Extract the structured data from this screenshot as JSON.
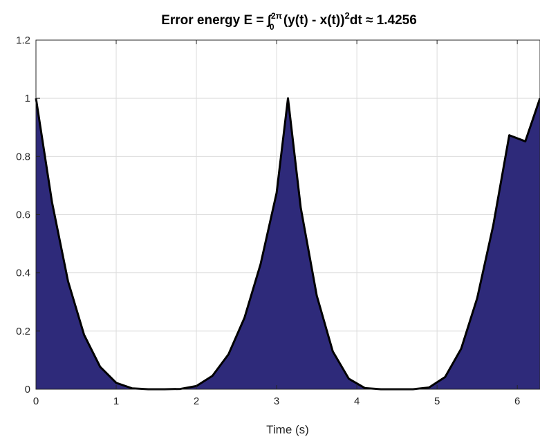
{
  "chart_data": {
    "type": "area",
    "title": {
      "lead": "Error energy E = ∫",
      "upper_limit": "2π",
      "lower_limit": "0",
      "mid": " (y(t) - x(t))",
      "exponent": "2",
      "tail": "dt ≈ 1.4256"
    },
    "xlabel": "Time (s)",
    "ylabel": "",
    "xlim": [
      0,
      6.283
    ],
    "ylim": [
      0,
      1.2
    ],
    "xticks": [
      0,
      1,
      2,
      3,
      4,
      5,
      6
    ],
    "xtick_labels": [
      "0",
      "1",
      "2",
      "3",
      "4",
      "5",
      "6"
    ],
    "yticks": [
      0,
      0.2,
      0.4,
      0.6,
      0.8,
      1,
      1.2
    ],
    "ytick_labels": [
      "0",
      "0.2",
      "0.4",
      "0.6",
      "0.8",
      "1",
      "1.2"
    ],
    "grid": true,
    "series": [
      {
        "x": [
          0,
          0.2,
          0.4,
          0.6,
          0.8,
          1.0,
          1.2,
          1.4,
          1.6,
          1.8,
          2.0,
          2.2,
          2.4,
          2.6,
          2.8,
          3.0,
          3.1416,
          3.3,
          3.5,
          3.7,
          3.9,
          4.1,
          4.3,
          4.5,
          4.7,
          4.9,
          5.1,
          5.3,
          5.5,
          5.7,
          5.9,
          6.1,
          6.283
        ],
        "y": [
          1.0,
          0.643,
          0.371,
          0.187,
          0.077,
          0.022,
          0.003,
          0.0,
          0.0,
          0.001,
          0.011,
          0.046,
          0.12,
          0.246,
          0.43,
          0.675,
          1.0,
          0.625,
          0.322,
          0.13,
          0.036,
          0.004,
          0.0,
          0.0,
          0.0,
          0.006,
          0.042,
          0.139,
          0.313,
          0.563,
          0.873,
          0.852,
          1.0
        ],
        "fill_color": "#2e2a7a",
        "line_color": "#000000"
      }
    ],
    "colors": {
      "fill": "#2e2a7a",
      "line": "#000000",
      "grid": "#dcdcdc",
      "axes": "#262626"
    }
  }
}
